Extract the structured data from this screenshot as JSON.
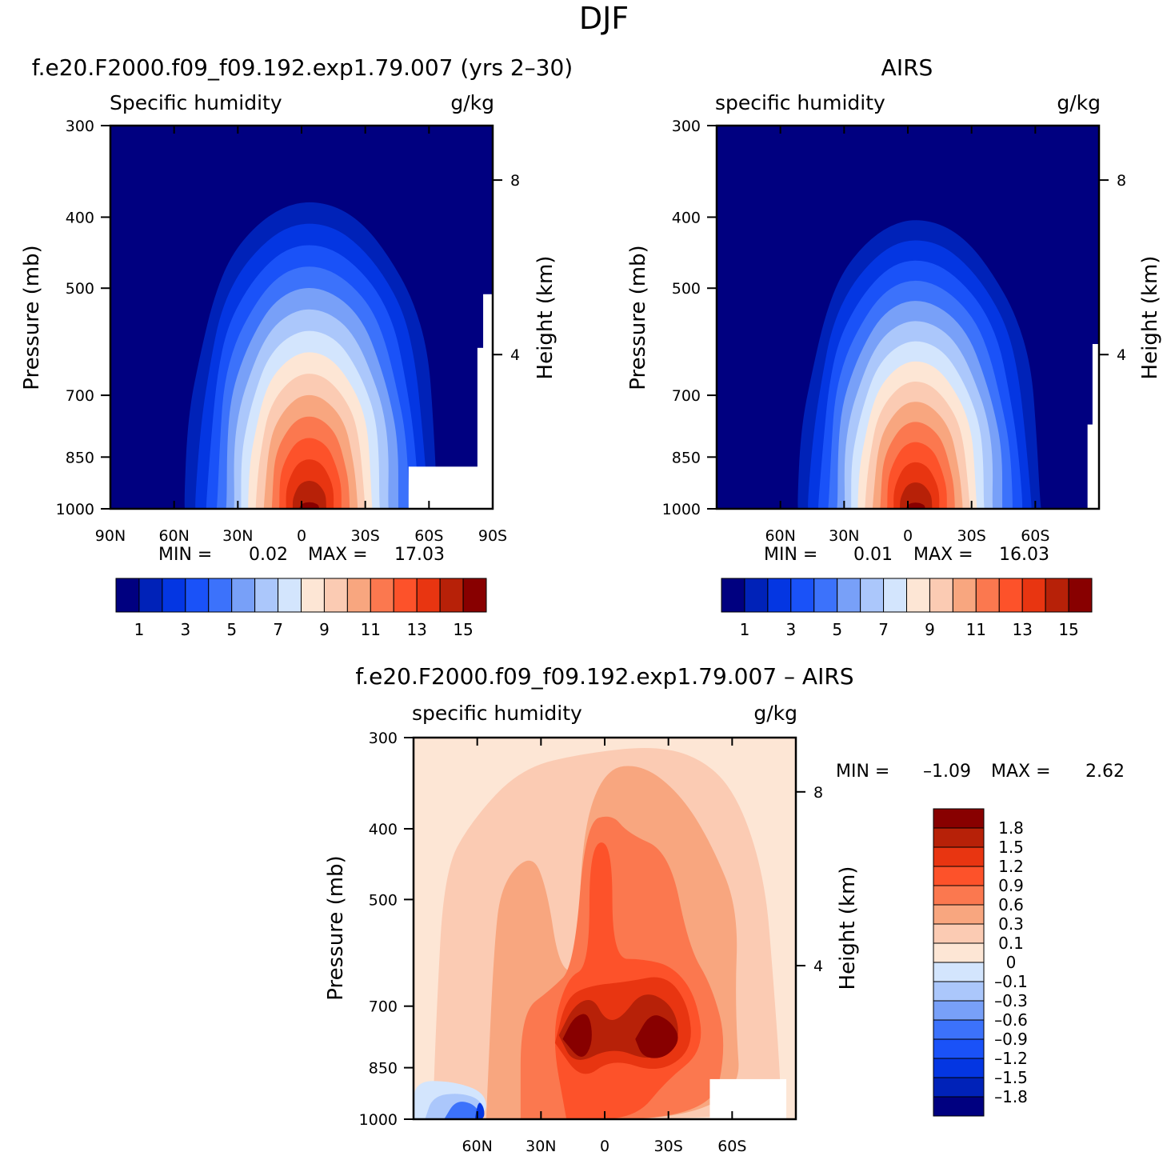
{
  "figure": {
    "title": "DJF"
  },
  "colors": {
    "abs_levels": [
      "#000080",
      "#0022b8",
      "#0436e2",
      "#1a52f8",
      "#3c72fb",
      "#78a0f8",
      "#abc7fb",
      "#d3e5fd",
      "#fde6d5",
      "#fbcbb3",
      "#f8a67f",
      "#fb784f",
      "#fd522a",
      "#e83511",
      "#b72108",
      "#880000"
    ],
    "diff_levels": [
      "#000080",
      "#0022b8",
      "#0436e2",
      "#1a52f8",
      "#3c72fb",
      "#78a0f8",
      "#abc7fb",
      "#d3e5fd",
      "#fde6d5",
      "#fbcbb3",
      "#f8a67f",
      "#fb784f",
      "#fd522a",
      "#e83511",
      "#b72108",
      "#880000"
    ]
  },
  "chart_data": [
    {
      "type": "heatmap",
      "title": "f.e20.F2000.f09_f09.192.exp1.79.007 (yrs 2–30)",
      "left_label": "Specific humidity",
      "right_label": "g/kg",
      "ylabel": "Pressure (mb)",
      "ylabel_right": "Height (km)",
      "yticks": [
        "300",
        "400",
        "500",
        "700",
        "850",
        "1000"
      ],
      "yticks_right": [
        "8",
        "4"
      ],
      "xticks": [
        "90N",
        "60N",
        "30N",
        "0",
        "30S",
        "60S",
        "90S"
      ],
      "min_label": "MIN =",
      "min_value": "0.02",
      "max_label": "MAX =",
      "max_value": "17.03",
      "colorbar_labels": [
        "1",
        "3",
        "5",
        "7",
        "9",
        "11",
        "13",
        "15"
      ]
    },
    {
      "type": "heatmap",
      "title": "AIRS",
      "left_label": "specific humidity",
      "right_label": "g/kg",
      "ylabel": "Pressure (mb)",
      "ylabel_right": "Height (km)",
      "yticks": [
        "300",
        "400",
        "500",
        "700",
        "850",
        "1000"
      ],
      "yticks_right": [
        "8",
        "4"
      ],
      "xticks": [
        "60N",
        "30N",
        "0",
        "30S",
        "60S"
      ],
      "min_label": "MIN =",
      "min_value": "0.01",
      "max_label": "MAX =",
      "max_value": "16.03",
      "colorbar_labels": [
        "1",
        "3",
        "5",
        "7",
        "9",
        "11",
        "13",
        "15"
      ]
    },
    {
      "type": "heatmap",
      "title": "f.e20.F2000.f09_f09.192.exp1.79.007 – AIRS",
      "left_label": "specific humidity",
      "right_label": "g/kg",
      "ylabel": "Pressure (mb)",
      "ylabel_right": "Height (km)",
      "yticks": [
        "300",
        "400",
        "500",
        "700",
        "850",
        "1000"
      ],
      "yticks_right": [
        "8",
        "4"
      ],
      "xticks": [
        "60N",
        "30N",
        "0",
        "30S",
        "60S"
      ],
      "min_label": "MIN =",
      "min_value": "–1.09",
      "max_label": "MAX =",
      "max_value": "2.62",
      "colorbar_labels": [
        "1.8",
        "1.5",
        "1.2",
        "0.9",
        "0.6",
        "0.3",
        "0.1",
        "0",
        "–0.1",
        "–0.3",
        "–0.6",
        "–0.9",
        "–1.2",
        "–1.5",
        "–1.8"
      ]
    }
  ]
}
